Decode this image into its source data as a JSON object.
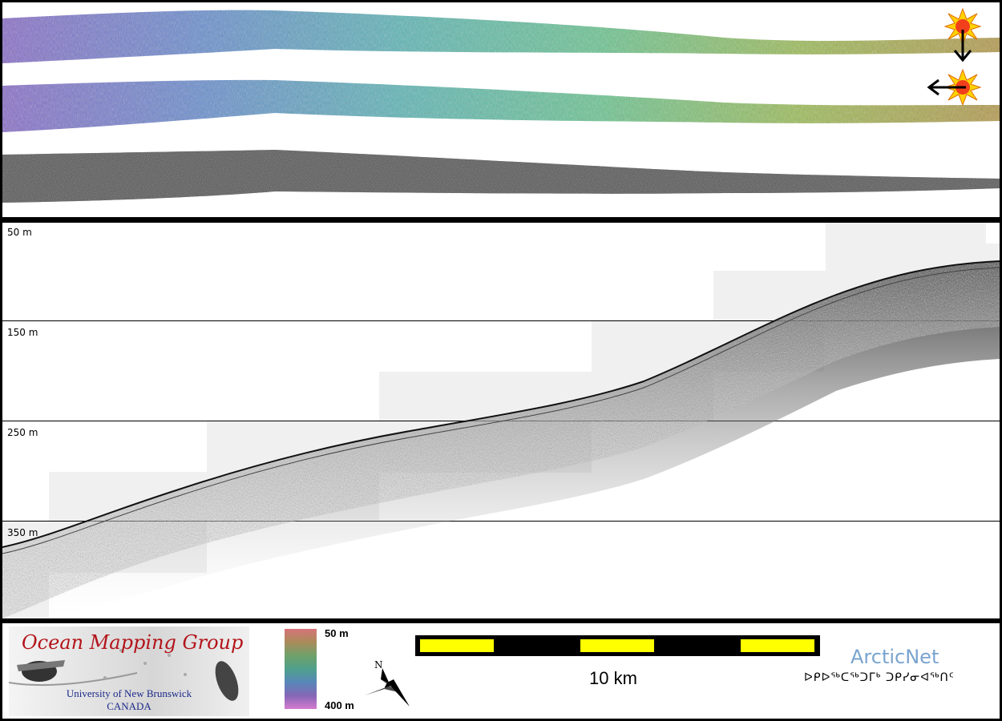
{
  "swaths": {
    "bathymetry_colors": [
      "#8a6fc9",
      "#6a8fcf",
      "#5fb6b6",
      "#6cc592",
      "#9dbd5a",
      "#b49a4e"
    ],
    "backscatter_color": "#3a3a3a",
    "sun_icon_1": "sun-illumination-from-north-icon",
    "sun_icon_2": "sun-illumination-from-east-icon"
  },
  "profile": {
    "depth_labels": [
      "50 m",
      "150 m",
      "250 m",
      "350 m"
    ]
  },
  "legend": {
    "org_title": "Ocean Mapping Group",
    "org_line1": "University of New Brunswick",
    "org_line2": "CANADA",
    "colorbar_top": "50 m",
    "colorbar_bottom": "400 m",
    "colorbar_colors": [
      "#d8737a",
      "#a98b5a",
      "#6fa16a",
      "#4fa08c",
      "#5887b8",
      "#8566b6",
      "#d47ad0"
    ],
    "north_label": "N",
    "scale_text": "10 km",
    "scale_colors": [
      "#ffff00",
      "#000000"
    ],
    "partner_name": "ArcticNet",
    "partner_syllabics": "ᐅᑭᐅᖅᑕᖅᑐᒥᒃ ᑐᑭᓯᓂᐊᖅᑎᑦ"
  }
}
